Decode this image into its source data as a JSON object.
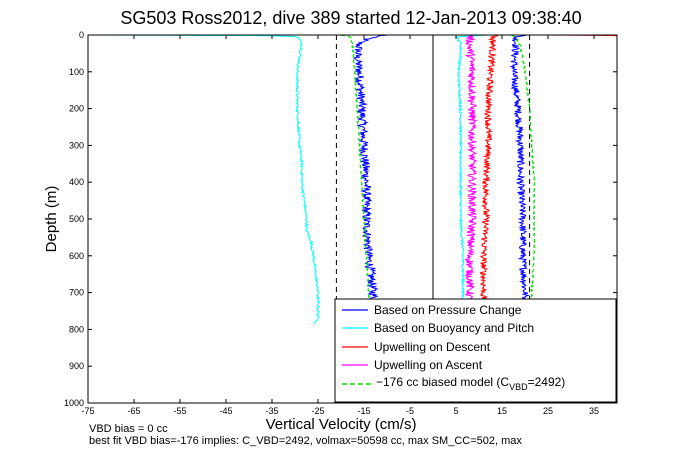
{
  "chart_data": {
    "type": "line",
    "title": "SG503 Ross2012, dive 389 started 12-Jan-2013 09:38:40",
    "xlabel": "Vertical Velocity (cm/s)",
    "ylabel": "Depth (m)",
    "xlim": [
      -75,
      40
    ],
    "ylim": [
      1000,
      0
    ],
    "y_reversed": true,
    "x_tick_labels": [
      "-75",
      "-65",
      "-55",
      "-45",
      "-35",
      "-25",
      "-15",
      "-5",
      "5",
      "15",
      "25",
      "35"
    ],
    "x_ticks": [
      -75,
      -65,
      -55,
      -45,
      -35,
      -25,
      -15,
      -5,
      5,
      15,
      25,
      35
    ],
    "y_tick_labels": [
      "0",
      "100",
      "200",
      "300",
      "400",
      "500",
      "600",
      "700",
      "800",
      "900",
      "1000"
    ],
    "y_ticks": [
      0,
      100,
      200,
      300,
      400,
      500,
      600,
      700,
      800,
      900,
      1000
    ],
    "grid": false,
    "legend_position": "bottom-right",
    "colors": {
      "pressure": "#0000ff",
      "buoyancy": "#00ffff",
      "descent": "#ff0000",
      "ascent": "#ff00ff",
      "model": "#00dd00",
      "reference": "#000000"
    },
    "legend": [
      {
        "key": "pressure",
        "label": "Based on Pressure Change",
        "style": "solid"
      },
      {
        "key": "buoyancy",
        "label": "Based on Buoyancy and Pitch",
        "style": "solid"
      },
      {
        "key": "descent",
        "label": "Upwelling on Descent",
        "style": "solid"
      },
      {
        "key": "ascent",
        "label": "Upwelling on Ascent",
        "style": "solid"
      },
      {
        "key": "model",
        "label_prefix": "−176 cc biased model (C",
        "label_sub": "VBD",
        "label_suffix": "=2492)",
        "style": "dashed"
      }
    ],
    "series": [
      {
        "name": "Based on Pressure Change",
        "key": "pressure",
        "part": "descent",
        "noise": 1.0,
        "depth": [
          0,
          5,
          20,
          60,
          100,
          200,
          300,
          400,
          500,
          600,
          700,
          760
        ],
        "values": [
          -10,
          -13,
          -16,
          -16.5,
          -16,
          -15.5,
          -15,
          -14.5,
          -14.5,
          -14,
          -13,
          -12.5
        ]
      },
      {
        "name": "Based on Pressure Change",
        "key": "pressure",
        "part": "ascent",
        "noise": 0.8,
        "depth": [
          0,
          5,
          30,
          100,
          200,
          300,
          400,
          500,
          600,
          700,
          760
        ],
        "values": [
          20,
          18,
          18,
          17.5,
          18.5,
          19,
          19,
          19.5,
          19.5,
          20,
          20
        ]
      },
      {
        "name": "Based on Buoyancy and Pitch",
        "key": "buoyancy",
        "part": "descent",
        "noise": 0.25,
        "depth": [
          0,
          1,
          3,
          10,
          30,
          60,
          100,
          200,
          300,
          350,
          400,
          450,
          500,
          530,
          560,
          600,
          650,
          700,
          760,
          775,
          785
        ],
        "values": [
          -75,
          -40,
          -30,
          -29,
          -28.5,
          -29,
          -29.5,
          -29.5,
          -29,
          -28.5,
          -28.5,
          -28,
          -27.5,
          -27.5,
          -26.5,
          -26,
          -25.5,
          -25,
          -25,
          -25,
          -26
        ]
      },
      {
        "name": "Based on Buoyancy and Pitch",
        "key": "buoyancy",
        "part": "ascent",
        "noise": 0.25,
        "depth": [
          0,
          5,
          20,
          60,
          100,
          200,
          300,
          400,
          500,
          600,
          700,
          785
        ],
        "values": [
          12,
          5,
          6,
          6,
          5.5,
          6,
          6,
          6,
          6,
          6.5,
          6.5,
          7
        ]
      },
      {
        "name": "Upwelling on Descent",
        "key": "descent",
        "part": "main",
        "noise": 0.7,
        "depth": [
          0,
          5,
          30,
          100,
          200,
          300,
          400,
          500,
          600,
          700,
          760
        ],
        "values": [
          14,
          13,
          13,
          12.5,
          12,
          12,
          11.5,
          11.5,
          11,
          11,
          11
        ]
      },
      {
        "name": "Upwelling on Descent",
        "key": "descent",
        "part": "surface",
        "noise": 0.1,
        "depth": [
          0,
          1,
          2
        ],
        "values": [
          25,
          37,
          40
        ]
      },
      {
        "name": "Upwelling on Ascent",
        "key": "ascent",
        "part": "main",
        "noise": 0.9,
        "depth": [
          0,
          5,
          30,
          100,
          200,
          300,
          400,
          500,
          600,
          700,
          760
        ],
        "values": [
          9,
          8,
          8,
          8.5,
          8.5,
          8.5,
          8.5,
          8.5,
          8,
          8,
          7.5
        ]
      },
      {
        "name": "−176 cc biased model (CVBD=2492)",
        "key": "model",
        "part": "descent",
        "noise": 0.15,
        "dashed": true,
        "depth": [
          0,
          5,
          30,
          100,
          200,
          300,
          400,
          500,
          600,
          700,
          760
        ],
        "values": [
          -20,
          -18,
          -17.5,
          -17,
          -16.5,
          -16,
          -15.5,
          -15,
          -14.5,
          -14,
          -13.5
        ]
      },
      {
        "name": "−176 cc biased model (CVBD=2492)",
        "key": "model",
        "part": "ascent",
        "noise": 0.15,
        "dashed": true,
        "depth": [
          0,
          5,
          30,
          100,
          200,
          300,
          400,
          500,
          600,
          700,
          760
        ],
        "values": [
          17,
          18,
          19,
          20,
          21,
          21.5,
          22,
          22,
          22,
          21.5,
          21
        ]
      }
    ],
    "reference_lines": [
      {
        "key": "reference",
        "x": 0,
        "style": "solid"
      },
      {
        "key": "reference",
        "x": -21,
        "style": "dashed"
      },
      {
        "key": "reference",
        "x": 21,
        "style": "dashed"
      }
    ],
    "footnotes": [
      "VBD bias = 0 cc",
      "best fit VBD bias=-176 implies: C_VBD=2492, volmax=50598 cc, max SM_CC=502, max"
    ]
  }
}
